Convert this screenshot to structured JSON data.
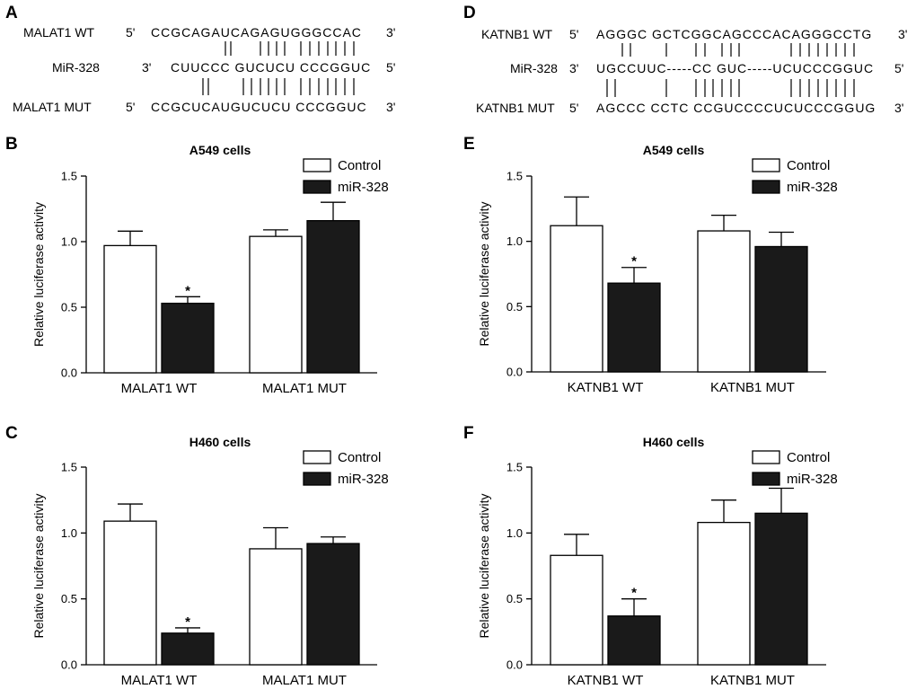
{
  "panels": {
    "A": "A",
    "B": "B",
    "C": "C",
    "D": "D",
    "E": "E",
    "F": "F"
  },
  "seqA": {
    "rows": [
      {
        "label": "MALAT1 WT",
        "p1": "5'",
        "seq": "CCGCAGAUCAGAGUGGGCCAC",
        "p2": "3'"
      },
      {
        "label": "MiR-328",
        "p1": "3'",
        "seq": "CUUCCC GUCUCU CCCGGUC",
        "p2": "5'"
      },
      {
        "label": "MALAT1 MUT",
        "p1": "5'",
        "seq": "CCGCUCAUGUCUCU CCCGGUC",
        "p2": "3'"
      }
    ],
    "pairs_top": "                  | |         ||||||     | | | | | | |",
    "pairs_bot": "  | |  | |        ||||||     | | | | | | |"
  },
  "seqD": {
    "rows": [
      {
        "label": "KATNB1 WT",
        "p1": "5'",
        "seq": "AGGGC GCTCGGCAGCCCACAGGGCCTG",
        "p2": "3'"
      },
      {
        "label": "MiR-328",
        "p1": "3'",
        "seq": "UGCCUUC-----CC GUC-----UCUCCCGGUC",
        "p2": "5'"
      },
      {
        "label": "KATNB1 MUT",
        "p1": "5'",
        "seq": "AGCCC CCTC CCGUCCCCUCUCCCGGUG",
        "p2": "3'"
      }
    ]
  },
  "charts": [
    {
      "id": "B",
      "chart_data": {
        "type": "bar",
        "title": "A549 cells",
        "ylabel": "Relative luciferase activity",
        "ylim": [
          0,
          1.5
        ],
        "yticks": [
          "0.0",
          "0.5",
          "1.0",
          "1.5"
        ],
        "categories": [
          "MALAT1 WT",
          "MALAT1 MUT"
        ],
        "series": [
          {
            "name": "Control",
            "values": [
              0.97,
              1.04
            ],
            "errors": [
              0.11,
              0.05
            ],
            "fill": "#ffffff"
          },
          {
            "name": "miR-328",
            "values": [
              0.53,
              1.16
            ],
            "errors": [
              0.05,
              0.14
            ],
            "fill": "#1a1a1a"
          }
        ],
        "significance": [
          "",
          "*"
        ],
        "legend": [
          "Control",
          "miR-328"
        ]
      }
    },
    {
      "id": "C",
      "chart_data": {
        "type": "bar",
        "title": "H460 cells",
        "ylabel": "Relative luciferase activity",
        "ylim": [
          0,
          1.5
        ],
        "yticks": [
          "0.0",
          "0.5",
          "1.0",
          "1.5"
        ],
        "categories": [
          "MALAT1 WT",
          "MALAT1 MUT"
        ],
        "series": [
          {
            "name": "Control",
            "values": [
              1.09,
              0.88
            ],
            "errors": [
              0.13,
              0.16
            ],
            "fill": "#ffffff"
          },
          {
            "name": "miR-328",
            "values": [
              0.24,
              0.92
            ],
            "errors": [
              0.04,
              0.05
            ],
            "fill": "#1a1a1a"
          }
        ],
        "legend": [
          "Control",
          "miR-328"
        ]
      }
    },
    {
      "id": "E",
      "chart_data": {
        "type": "bar",
        "title": "A549 cells",
        "ylabel": "Relative luciferase activity",
        "ylim": [
          0,
          1.5
        ],
        "yticks": [
          "0.0",
          "0.5",
          "1.0",
          "1.5"
        ],
        "categories": [
          "KATNB1 WT",
          "KATNB1 MUT"
        ],
        "series": [
          {
            "name": "Control",
            "values": [
              1.12,
              1.08
            ],
            "errors": [
              0.22,
              0.12
            ],
            "fill": "#ffffff"
          },
          {
            "name": "miR-328",
            "values": [
              0.68,
              0.96
            ],
            "errors": [
              0.12,
              0.11
            ],
            "fill": "#1a1a1a"
          }
        ],
        "legend": [
          "Control",
          "miR-328"
        ]
      }
    },
    {
      "id": "F",
      "chart_data": {
        "type": "bar",
        "title": "H460 cells",
        "ylabel": "Relative luciferase activity",
        "ylim": [
          0,
          1.5
        ],
        "yticks": [
          "0.0",
          "0.5",
          "1.0",
          "1.5"
        ],
        "categories": [
          "KATNB1 WT",
          "KATNB1 MUT"
        ],
        "series": [
          {
            "name": "Control",
            "values": [
              0.83,
              1.08
            ],
            "errors": [
              0.16,
              0.17
            ],
            "fill": "#ffffff"
          },
          {
            "name": "miR-328",
            "values": [
              0.37,
              1.15
            ],
            "errors": [
              0.13,
              0.19
            ],
            "fill": "#1a1a1a"
          }
        ],
        "legend": [
          "Control",
          "miR-328"
        ]
      }
    }
  ],
  "star": "*"
}
